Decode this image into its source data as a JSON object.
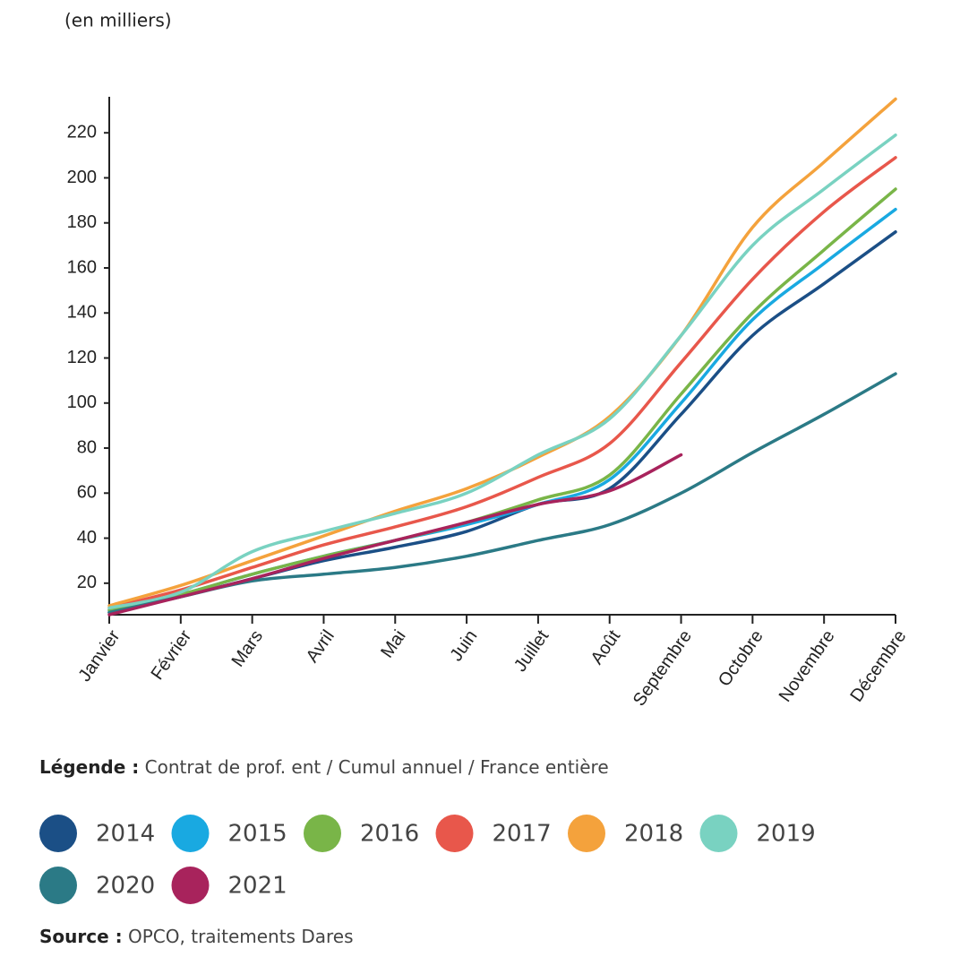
{
  "chart_data": {
    "type": "line",
    "unit_label": "(en milliers)",
    "categories": [
      "Janvier",
      "Février",
      "Mars",
      "Avril",
      "Mai",
      "Juin",
      "Juillet",
      "Août",
      "Septembre",
      "Octobre",
      "Novembre",
      "Décembre"
    ],
    "ylim": [
      6,
      236
    ],
    "yticks": [
      20,
      40,
      60,
      80,
      100,
      120,
      140,
      160,
      180,
      200,
      220
    ],
    "grid": false,
    "series": [
      {
        "name": "2014",
        "color": "#1b4f86",
        "values": [
          7,
          14,
          22,
          30,
          36,
          43,
          55,
          62,
          95,
          130,
          153,
          176
        ]
      },
      {
        "name": "2015",
        "color": "#19a9e1",
        "values": [
          8,
          15,
          24,
          32,
          39,
          46,
          55,
          66,
          100,
          137,
          162,
          186
        ]
      },
      {
        "name": "2016",
        "color": "#79b548",
        "values": [
          8,
          15,
          24,
          32,
          39,
          47,
          57,
          68,
          104,
          140,
          168,
          195
        ]
      },
      {
        "name": "2017",
        "color": "#e8574b",
        "values": [
          9,
          17,
          27,
          37,
          45,
          54,
          67,
          82,
          118,
          155,
          185,
          209
        ]
      },
      {
        "name": "2018",
        "color": "#f4a23c",
        "values": [
          10,
          19,
          30,
          41,
          52,
          62,
          76,
          94,
          130,
          178,
          207,
          235
        ]
      },
      {
        "name": "2019",
        "color": "#79d2c1",
        "values": [
          9,
          16,
          34,
          43,
          51,
          60,
          77,
          93,
          130,
          170,
          195,
          219
        ]
      },
      {
        "name": "2020",
        "color": "#2b7a86",
        "values": [
          7,
          14,
          21,
          24,
          27,
          32,
          39,
          46,
          60,
          78,
          95,
          113
        ]
      },
      {
        "name": "2021",
        "color": "#a8235c",
        "values": [
          6,
          14,
          22,
          31,
          39,
          47,
          55,
          61,
          77,
          null,
          null,
          null
        ]
      }
    ],
    "legend_title": "Légende :",
    "legend_text": "Contrat de prof. ent / Cumul annuel / France entière",
    "source_label": "Source :",
    "source_text": "OPCO, traitements Dares"
  }
}
